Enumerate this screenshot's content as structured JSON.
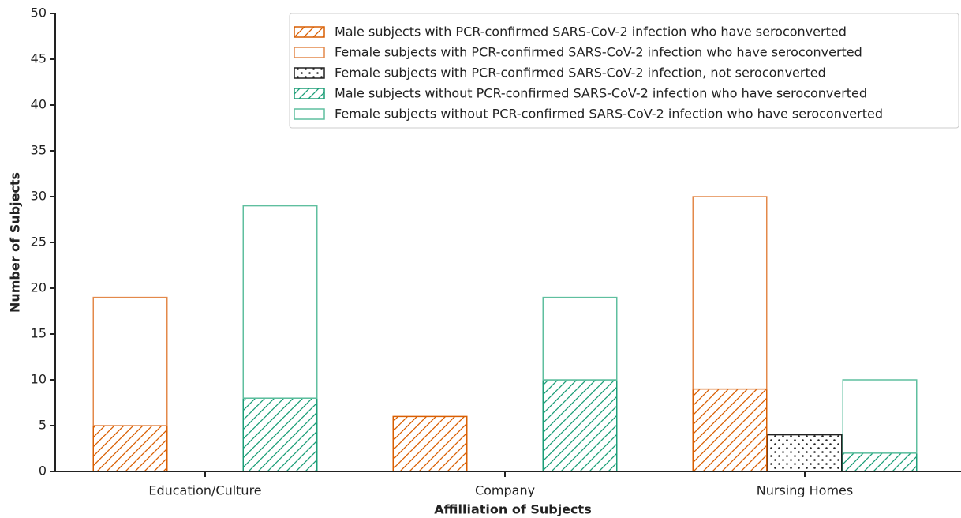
{
  "chart_data": {
    "type": "bar",
    "xlabel": "Affilliation of Subjects",
    "ylabel": "Number of Subjects",
    "categories": [
      "Education/Culture",
      "Company",
      "Nursing Homes"
    ],
    "series": [
      {
        "name": "Male subjects with PCR-confirmed SARS-CoV-2 infection who have seroconverted",
        "color": "#d95f02",
        "hatch": "/",
        "values": [
          5,
          6,
          9
        ]
      },
      {
        "name": "Female subjects with PCR-confirmed SARS-CoV-2 infection who have seroconverted",
        "color": "#e3894a",
        "values": [
          14,
          0,
          21
        ]
      },
      {
        "name": "Female subjects with PCR-confirmed SARS-CoV-2 infection, not seroconverted",
        "color": "#222222",
        "hatch": ".",
        "values": [
          0,
          0,
          4
        ]
      },
      {
        "name": "Male subjects without PCR-confirmed SARS-CoV-2 infection who have seroconverted",
        "color": "#1b9e77",
        "hatch": "/",
        "values": [
          8,
          10,
          2
        ]
      },
      {
        "name": "Female subjects without PCR-confirmed SARS-CoV-2 infection who have seroconverted",
        "color": "#5fbf9f",
        "values": [
          21,
          9,
          8
        ]
      }
    ],
    "ylim": [
      0,
      50
    ],
    "yticks": [
      0,
      5,
      10,
      15,
      20,
      25,
      30,
      35,
      40,
      45,
      50
    ],
    "legend": "upper right"
  }
}
